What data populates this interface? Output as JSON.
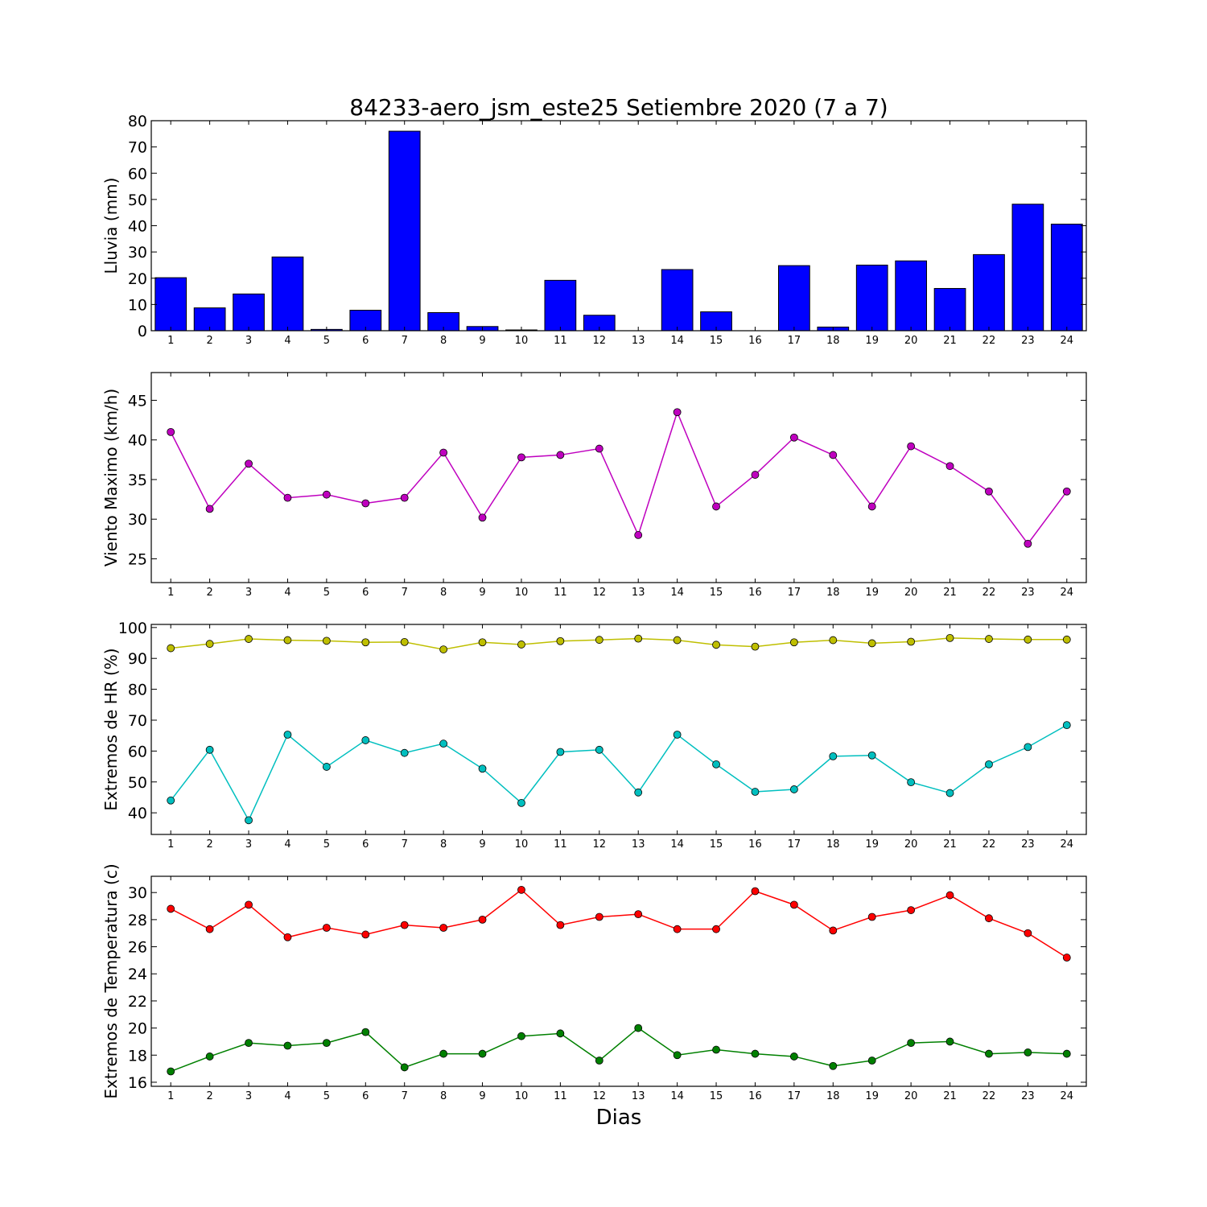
{
  "title": "84233-aero_jsm_este25 Setiembre 2020  (7 a 7)",
  "xlabel": "Dias",
  "chart_data": [
    {
      "type": "bar",
      "ylabel": "Lluvia (mm)",
      "ylim": [
        0,
        80
      ],
      "yticks": [
        0,
        10,
        20,
        30,
        40,
        50,
        60,
        70,
        80
      ],
      "categories": [
        "1",
        "2",
        "3",
        "4",
        "5",
        "6",
        "7",
        "8",
        "9",
        "10",
        "11",
        "12",
        "13",
        "14",
        "15",
        "16",
        "17",
        "18",
        "19",
        "20",
        "21",
        "22",
        "23",
        "24"
      ],
      "series": [
        {
          "color": "#0000ff",
          "values": [
            20.2,
            8.7,
            14.0,
            28.1,
            0.5,
            7.8,
            76.0,
            6.9,
            1.6,
            0.3,
            19.2,
            5.9,
            0.0,
            23.3,
            7.2,
            0.0,
            24.8,
            1.4,
            25.0,
            26.6,
            16.1,
            29.0,
            48.2,
            40.6
          ]
        }
      ]
    },
    {
      "type": "line",
      "ylabel": "Viento Maximo (km/h)",
      "ylim": [
        22,
        48.5
      ],
      "yticks": [
        25,
        30,
        35,
        40,
        45
      ],
      "categories": [
        "1",
        "2",
        "3",
        "4",
        "5",
        "6",
        "7",
        "8",
        "9",
        "10",
        "11",
        "12",
        "13",
        "14",
        "15",
        "16",
        "17",
        "18",
        "19",
        "20",
        "21",
        "22",
        "23",
        "24"
      ],
      "series": [
        {
          "color": "#bf00bf",
          "values": [
            41.0,
            31.3,
            37.0,
            32.7,
            33.1,
            32.0,
            32.7,
            38.4,
            30.2,
            37.8,
            38.1,
            38.9,
            28.0,
            43.5,
            31.6,
            35.6,
            40.3,
            38.1,
            31.6,
            39.2,
            36.7,
            33.5,
            26.9,
            33.5
          ]
        }
      ]
    },
    {
      "type": "line",
      "ylabel": "Extremos de HR (%)",
      "ylim": [
        33,
        101
      ],
      "yticks": [
        40,
        50,
        60,
        70,
        80,
        90,
        100
      ],
      "categories": [
        "1",
        "2",
        "3",
        "4",
        "5",
        "6",
        "7",
        "8",
        "9",
        "10",
        "11",
        "12",
        "13",
        "14",
        "15",
        "16",
        "17",
        "18",
        "19",
        "20",
        "21",
        "22",
        "23",
        "24"
      ],
      "series": [
        {
          "color": "#bfbf00",
          "values": [
            93.3,
            94.7,
            96.3,
            95.9,
            95.7,
            95.2,
            95.3,
            92.9,
            95.2,
            94.5,
            95.6,
            96.0,
            96.4,
            95.9,
            94.4,
            93.8,
            95.2,
            95.9,
            94.9,
            95.4,
            96.6,
            96.3,
            96.1,
            96.1
          ]
        },
        {
          "color": "#00bfbf",
          "values": [
            44.0,
            60.4,
            37.6,
            65.3,
            54.9,
            63.5,
            59.4,
            62.4,
            54.3,
            43.2,
            59.7,
            60.4,
            46.6,
            65.3,
            55.7,
            46.8,
            47.6,
            58.3,
            58.6,
            49.9,
            46.4,
            55.7,
            61.3,
            68.4
          ]
        }
      ]
    },
    {
      "type": "line",
      "ylabel": "Extremos de Temperatura (c)",
      "ylim": [
        15.7,
        31.2
      ],
      "yticks": [
        16,
        18,
        20,
        22,
        24,
        26,
        28,
        30
      ],
      "categories": [
        "1",
        "2",
        "3",
        "4",
        "5",
        "6",
        "7",
        "8",
        "9",
        "10",
        "11",
        "12",
        "13",
        "14",
        "15",
        "16",
        "17",
        "18",
        "19",
        "20",
        "21",
        "22",
        "23",
        "24"
      ],
      "series": [
        {
          "color": "#ff0000",
          "values": [
            28.8,
            27.3,
            29.1,
            26.7,
            27.4,
            26.9,
            27.6,
            27.4,
            28.0,
            30.2,
            27.6,
            28.2,
            28.4,
            27.3,
            27.3,
            30.1,
            29.1,
            27.2,
            28.2,
            28.7,
            29.8,
            28.1,
            27.0,
            25.2
          ]
        },
        {
          "color": "#008000",
          "values": [
            16.8,
            17.9,
            18.9,
            18.7,
            18.9,
            19.7,
            17.1,
            18.1,
            18.1,
            19.4,
            19.6,
            17.6,
            20.0,
            18.0,
            18.4,
            18.1,
            17.9,
            17.2,
            17.6,
            18.9,
            19.0,
            18.1,
            18.2,
            18.1
          ]
        }
      ]
    }
  ]
}
